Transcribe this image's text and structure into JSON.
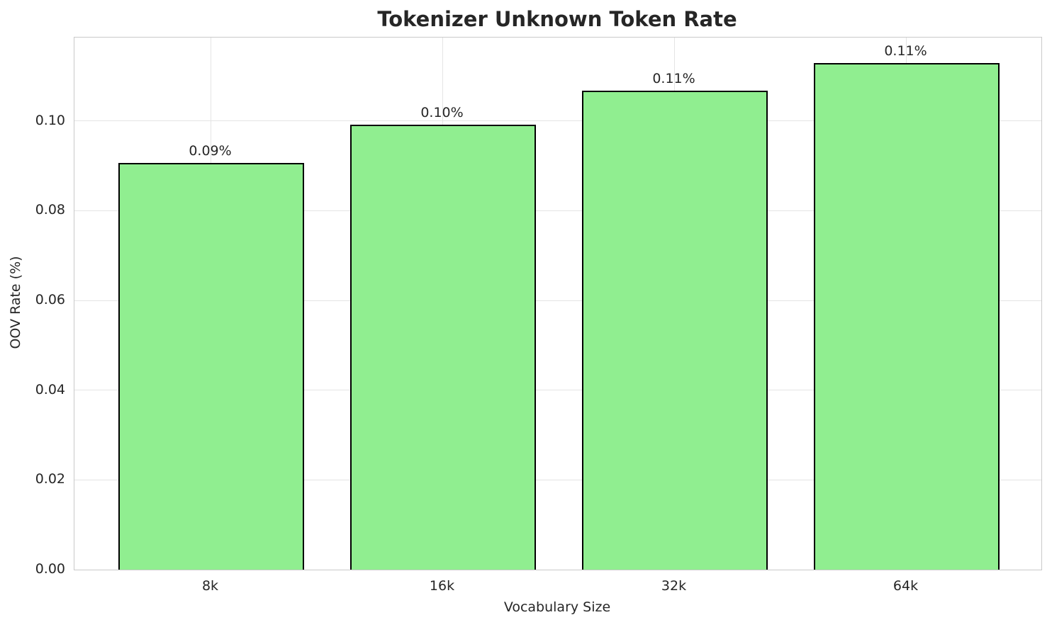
{
  "chart_data": {
    "type": "bar",
    "title": "Tokenizer Unknown Token Rate",
    "xlabel": "Vocabulary Size",
    "ylabel": "OOV Rate (%)",
    "categories": [
      "8k",
      "16k",
      "32k",
      "64k"
    ],
    "values": [
      0.0906,
      0.0991,
      0.1067,
      0.1129
    ],
    "bar_labels": [
      "0.09%",
      "0.10%",
      "0.11%",
      "0.11%"
    ],
    "ytick_values": [
      0.0,
      0.02,
      0.04,
      0.06,
      0.08,
      0.1
    ],
    "ytick_labels": [
      "0.00",
      "0.02",
      "0.04",
      "0.06",
      "0.08",
      "0.10"
    ],
    "ylim": [
      0,
      0.1186
    ],
    "grid": true,
    "legend_position": "none",
    "colors": {
      "bar_fill": "#90EE90",
      "bar_edge": "#000000",
      "grid": "#e4e4e4",
      "spine": "#c9c9c9",
      "text": "#262626",
      "background": "#ffffff"
    }
  }
}
